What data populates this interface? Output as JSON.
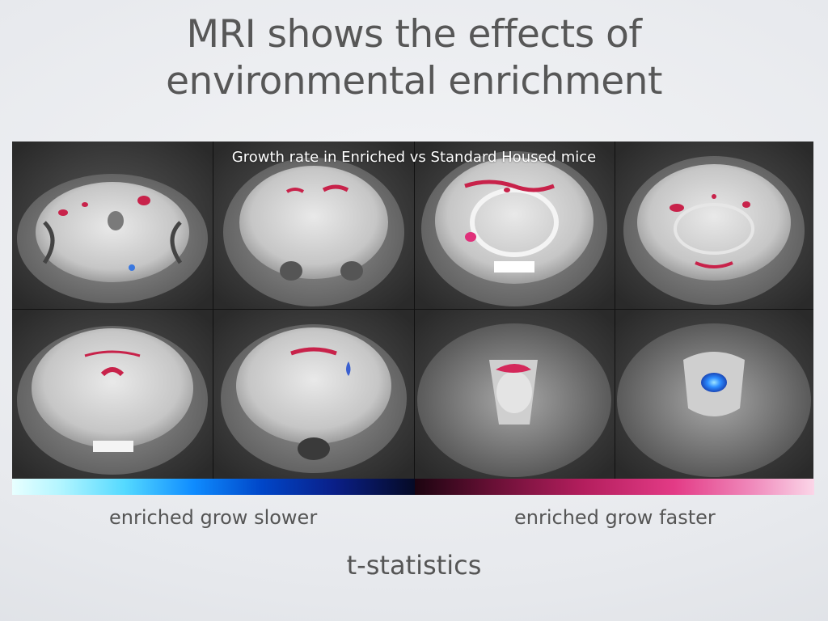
{
  "slide": {
    "title_line1": "MRI shows the effects of",
    "title_line2": "environmental enrichment"
  },
  "figure": {
    "caption": "Growth rate in Enriched vs Standard Housed mice",
    "panel_count": 8
  },
  "colorbar": {
    "negative_label": "enriched grow slower",
    "positive_label": "enriched grow faster",
    "title": "t-statistics",
    "cool_colors": [
      "#e8ffff",
      "#54d9ff",
      "#0f8cff",
      "#0a1f88",
      "#050a25"
    ],
    "warm_colors": [
      "#1c0410",
      "#6a1036",
      "#b31e5d",
      "#e33b86",
      "#fbd6e8"
    ]
  },
  "colors": {
    "background": "#e7e9ed",
    "text": "#555555",
    "overlay_positive": "#c8224a",
    "overlay_negative": "#3a78e0"
  }
}
